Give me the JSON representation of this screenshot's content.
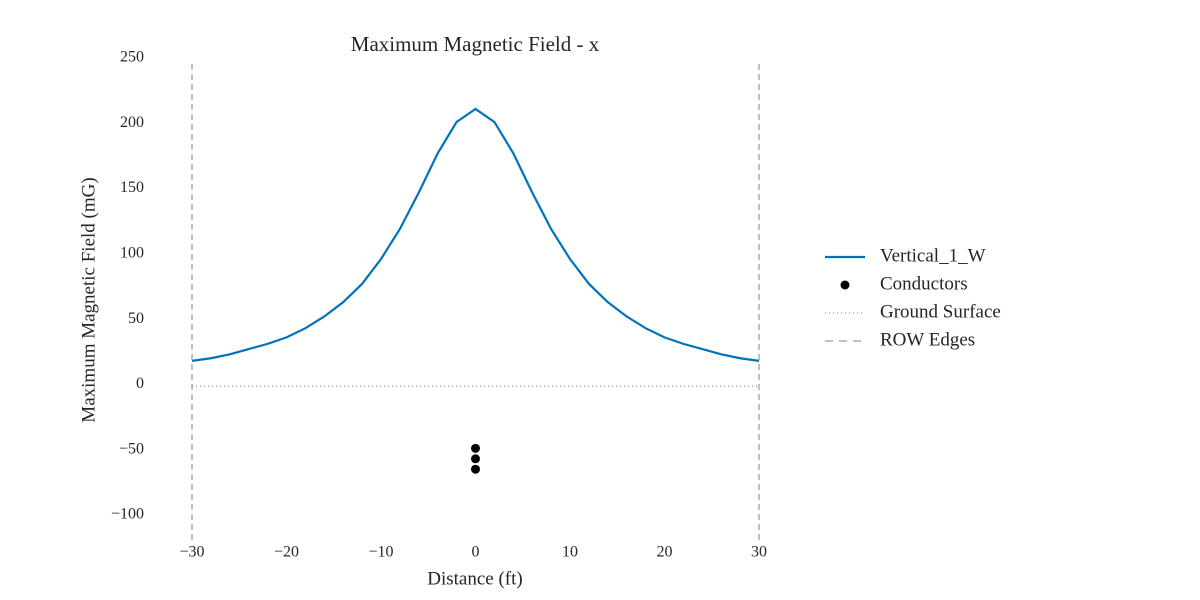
{
  "chart_data": {
    "type": "line",
    "title": "Maximum Magnetic Field - x",
    "xlabel": "Distance (ft)",
    "ylabel": "Maximum Magnetic Field (mG)",
    "xlim": [
      -30,
      30
    ],
    "ylim": [
      -120,
      250
    ],
    "xticks": [
      -30,
      -20,
      -10,
      0,
      10,
      20,
      30
    ],
    "yticks": [
      -100,
      -50,
      0,
      50,
      100,
      150,
      200,
      250
    ],
    "series": [
      {
        "name": "Vertical_1_W",
        "color": "#0072bd",
        "x": [
          -30,
          -28,
          -26,
          -24,
          -22,
          -20,
          -18,
          -16,
          -14,
          -12,
          -10,
          -8,
          -6,
          -4,
          -2,
          0,
          2,
          4,
          6,
          8,
          10,
          12,
          14,
          16,
          18,
          20,
          22,
          24,
          26,
          28,
          30
        ],
        "values": [
          18,
          20,
          23,
          27,
          31,
          36,
          43,
          52,
          63,
          77,
          96,
          119,
          147,
          177,
          201,
          211,
          201,
          177,
          147,
          119,
          96,
          77,
          63,
          52,
          43,
          36,
          31,
          27,
          23,
          20,
          18
        ]
      }
    ],
    "conductors": {
      "name": "Conductors",
      "color": "#000000",
      "x": [
        0,
        0,
        0
      ],
      "values": [
        -49,
        -57,
        -65
      ]
    },
    "ground": {
      "name": "Ground Surface",
      "color": "#808080",
      "value": -1.5
    },
    "row_edges": {
      "name": "ROW Edges",
      "color": "#808080",
      "x": [
        -30,
        30
      ]
    }
  }
}
